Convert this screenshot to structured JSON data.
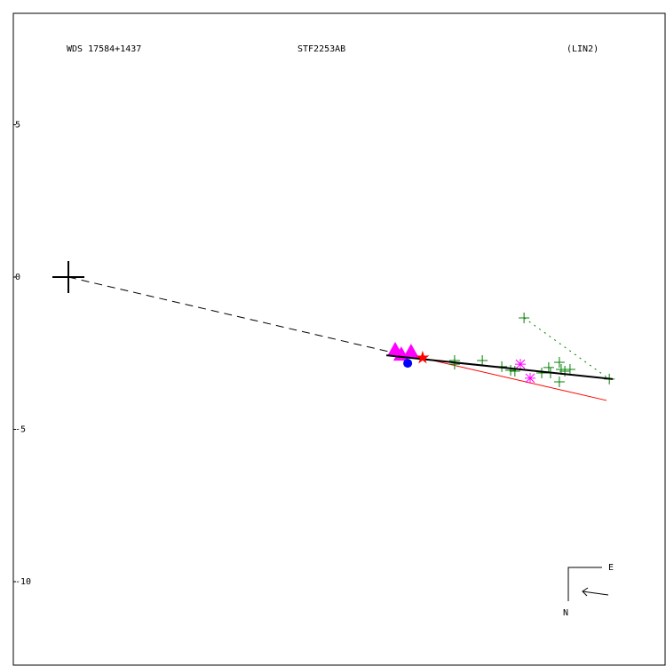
{
  "chart_data": {
    "type": "scatter",
    "title": "STF2253AB",
    "annotations": [
      "WDS 17584+1437",
      "(LIN2)"
    ],
    "compass": {
      "east": "E",
      "north": "N"
    },
    "xlim": [
      -1.808,
      19.592
    ],
    "ylim": [
      -12.74,
      8.659
    ],
    "yticks": [
      5,
      0,
      -5,
      -10
    ],
    "series": [
      {
        "marker": "primary",
        "color": "#000000",
        "x": [
          0
        ],
        "y": [
          0
        ]
      },
      {
        "line": "dashed",
        "color": "#000000",
        "x": [
          0,
          11.17
        ],
        "y": [
          0,
          -2.6
        ]
      },
      {
        "line": "dotted",
        "color": "#008000",
        "x": [
          14.96,
          17.76
        ],
        "y": [
          -1.34,
          -3.35
        ]
      },
      {
        "line": "solid",
        "color": "#ff0000",
        "x": [
          11.46,
          17.67
        ],
        "y": [
          -2.62,
          -4.05
        ]
      },
      {
        "marker": "plus",
        "color": "#008000",
        "x": [
          14.96,
          12.68,
          12.68,
          13.59,
          14.23,
          14.52,
          14.66,
          15.54,
          15.77,
          15.83,
          16.12,
          16.18,
          16.3,
          16.12,
          16.47,
          17.76
        ],
        "y": [
          -1.34,
          -2.74,
          -2.86,
          -2.74,
          -2.94,
          -3.06,
          -3.09,
          -3.15,
          -2.97,
          -3.15,
          -2.8,
          -3.03,
          -3.09,
          -3.44,
          -3.03,
          -3.35
        ]
      },
      {
        "marker": "asterisk",
        "color": "#ff00ff",
        "x": [
          14.84,
          15.16
        ],
        "y": [
          -2.86,
          -3.32
        ]
      },
      {
        "marker": "triangle",
        "color": "#ff00ff",
        "x": [
          10.73,
          11.25,
          10.93
        ],
        "y": [
          -2.42,
          -2.48,
          -2.57
        ]
      },
      {
        "marker": "dot",
        "color": "#0000ff",
        "x": [
          11.14
        ],
        "y": [
          -2.83
        ]
      },
      {
        "line": "thick",
        "color": "#000000",
        "x": [
          10.44,
          17.87
        ],
        "y": [
          -2.57,
          -3.35
        ]
      },
      {
        "marker": "star",
        "color": "#ff0000",
        "x": [
          11.63
        ],
        "y": [
          -2.65
        ]
      }
    ]
  }
}
